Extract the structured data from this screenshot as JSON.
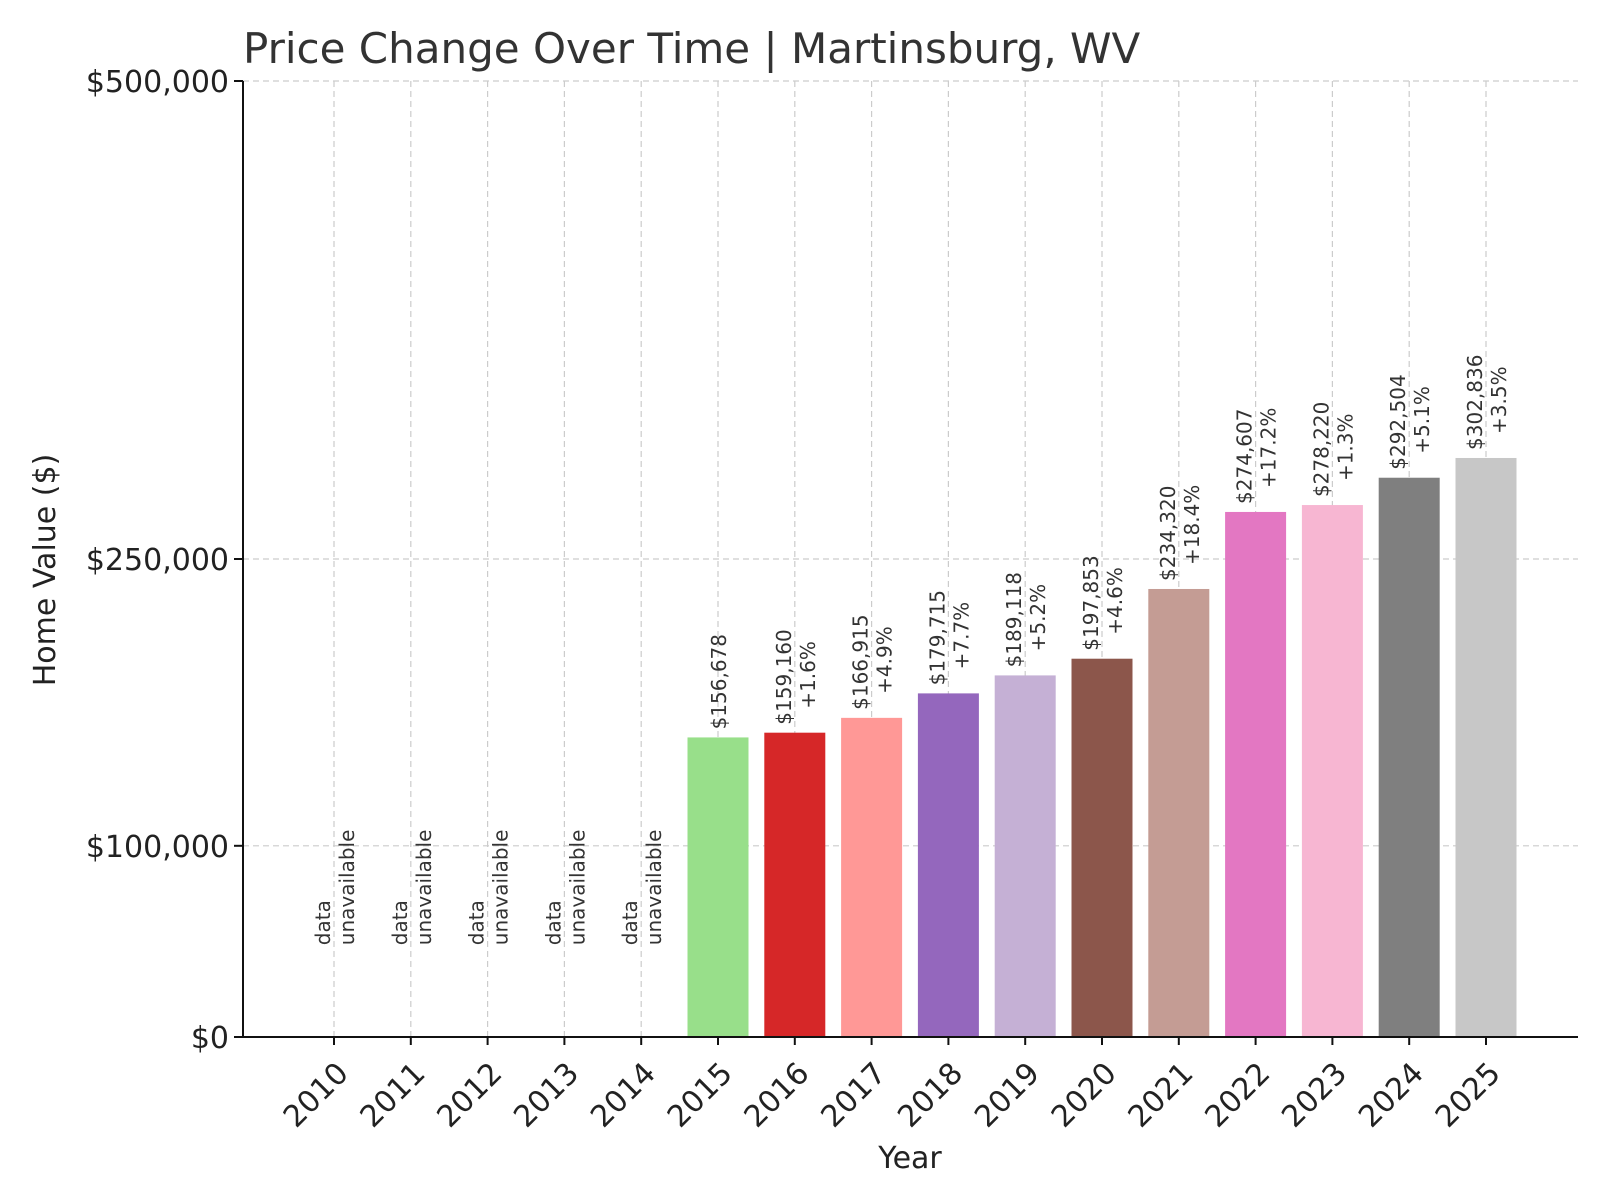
{
  "chart_data": {
    "type": "bar",
    "title": "Price Change Over Time | Martinsburg, WV",
    "xlabel": "Year",
    "ylabel": "Home Value ($)",
    "ylim": [
      0,
      500000
    ],
    "yticks": [
      {
        "value": 0,
        "label": "$0"
      },
      {
        "value": 100000,
        "label": "$100,000"
      },
      {
        "value": 250000,
        "label": "$250,000"
      },
      {
        "value": 500000,
        "label": "$500,000"
      }
    ],
    "grid": true,
    "categories": [
      "2010",
      "2011",
      "2012",
      "2013",
      "2014",
      "2015",
      "2016",
      "2017",
      "2018",
      "2019",
      "2020",
      "2021",
      "2022",
      "2023",
      "2024",
      "2025"
    ],
    "values": [
      null,
      null,
      null,
      null,
      null,
      156678,
      159160,
      166915,
      179715,
      189118,
      197853,
      234320,
      274607,
      278220,
      292504,
      302836
    ],
    "value_labels": [
      "",
      "",
      "",
      "",
      "",
      "$156,678",
      "$159,160",
      "$166,915",
      "$179,715",
      "$189,118",
      "$197,853",
      "$234,320",
      "$274,607",
      "$278,220",
      "$292,504",
      "$302,836"
    ],
    "change_labels": [
      "",
      "",
      "",
      "",
      "",
      "",
      "+1.6%",
      "+4.9%",
      "+7.7%",
      "+5.2%",
      "+4.6%",
      "+18.4%",
      "+17.2%",
      "+1.3%",
      "+5.1%",
      "+3.5%"
    ],
    "missing_label": [
      "data",
      "unavailable"
    ],
    "colors": [
      "#1f77b4",
      "#aec7e8",
      "#ff7f0e",
      "#ffbb78",
      "#2ca02c",
      "#98df8a",
      "#d62728",
      "#ff9896",
      "#9467bd",
      "#c5b0d5",
      "#8c564b",
      "#c49c94",
      "#e377c2",
      "#f7b6d2",
      "#7f7f7f",
      "#c7c7c7"
    ]
  }
}
